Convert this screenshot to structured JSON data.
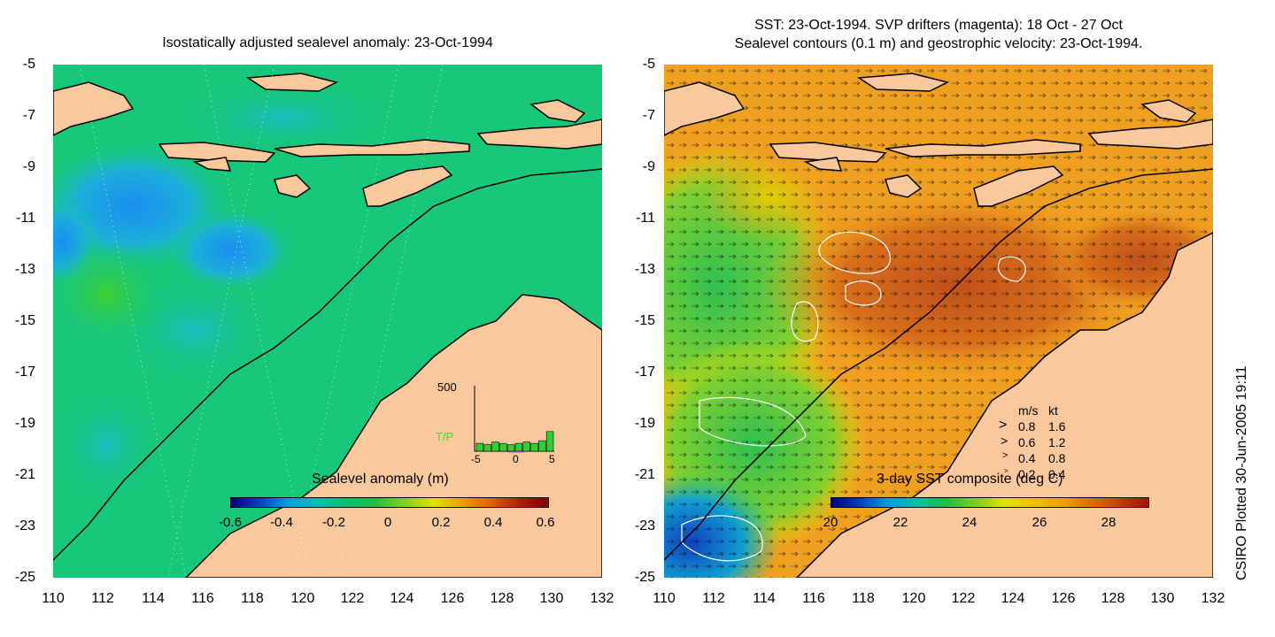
{
  "left_panel": {
    "title": "Isostatically adjusted sealevel anomaly: 23-Oct-1994",
    "colorbar": {
      "label": "Sealevel anomaly (m)",
      "ticks": [
        "-0.6",
        "-0.4",
        "-0.2",
        "0",
        "0.2",
        "0.4",
        "0.6"
      ],
      "colors": [
        "#000080",
        "#0040c0",
        "#00a0e0",
        "#00c0b0",
        "#00c070",
        "#20c040",
        "#80d020",
        "#e0e000",
        "#f0a000",
        "#e06000",
        "#b02000",
        "#800000"
      ]
    },
    "inset": {
      "ymax_label": "500",
      "series_label": "T/P",
      "xticks": [
        "-5",
        "0",
        "5"
      ],
      "bars": [
        0.12,
        0.1,
        0.14,
        0.12,
        0.1,
        0.12,
        0.14,
        0.12,
        0.16,
        0.3
      ]
    }
  },
  "right_panel": {
    "title_line1": "SST: 23-Oct-1994. SVP drifters (magenta): 18 Oct - 27 Oct",
    "title_line2": "Sealevel contours (0.1 m) and geostrophic velocity: 23-Oct-1994.",
    "colorbar": {
      "label": "3-day SST composite (deg C)",
      "ticks": [
        "20",
        "22",
        "24",
        "26",
        "28"
      ],
      "colors": [
        "#000080",
        "#0040c0",
        "#00a0e0",
        "#00c0a0",
        "#20c040",
        "#80d020",
        "#e0e000",
        "#f0c000",
        "#f0a000",
        "#e07000",
        "#c04000",
        "#a01000"
      ]
    },
    "legend": {
      "header_ms": "m/s",
      "header_kt": "kt",
      "rows": [
        {
          "ms": "0.8",
          "kt": "1.6"
        },
        {
          "ms": "0.6",
          "kt": "1.2"
        },
        {
          "ms": "0.4",
          "kt": "0.8"
        },
        {
          "ms": "0.2",
          "kt": "0.4"
        }
      ]
    }
  },
  "axes": {
    "y_ticks": [
      "-5",
      "-7",
      "-9",
      "-11",
      "-13",
      "-15",
      "-17",
      "-19",
      "-21",
      "-23",
      "-25"
    ],
    "x_ticks": [
      "110",
      "112",
      "114",
      "116",
      "118",
      "120",
      "122",
      "124",
      "126",
      "128",
      "130",
      "132"
    ]
  },
  "colors": {
    "land": "#f9c89c",
    "left_sea": "#17c77a",
    "right_sea": "#f0a020"
  },
  "footer": {
    "plot_stamp": "CSIRO Plotted 30-Jun-2005 19:11"
  }
}
